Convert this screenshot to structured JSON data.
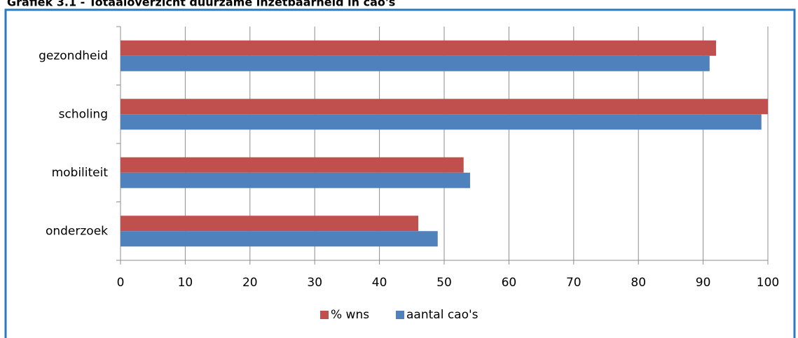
{
  "chart_data": {
    "type": "hbar",
    "title": "Grafiek 3.1 - Totaaloverzicht duurzame inzetbaarheid in cao's",
    "categories": [
      "gezondheid",
      "scholing",
      "mobiliteit",
      "onderzoek"
    ],
    "series": [
      {
        "name": "% wns",
        "color": "#c0504d",
        "values": [
          92,
          100,
          53,
          46
        ]
      },
      {
        "name": "aantal cao's",
        "color": "#4f81bd",
        "values": [
          91,
          99,
          54,
          49
        ]
      }
    ],
    "xlim": [
      0,
      100
    ],
    "xticks": [
      0,
      10,
      20,
      30,
      40,
      50,
      60,
      70,
      80,
      90,
      100
    ],
    "grid": true,
    "legend": "bottom"
  }
}
